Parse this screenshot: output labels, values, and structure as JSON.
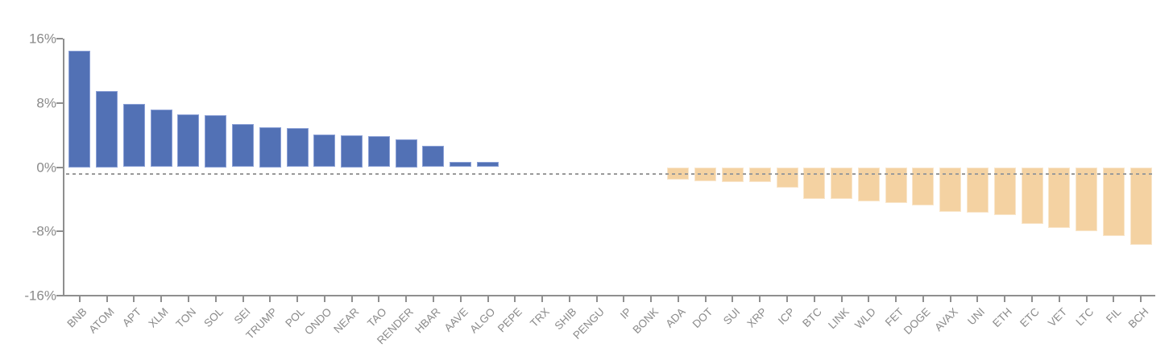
{
  "chart_data": {
    "type": "bar",
    "title": "",
    "xlabel": "",
    "ylabel": "",
    "ylim": [
      -16,
      16
    ],
    "grid": false,
    "legend": null,
    "y_ticks": [
      {
        "value": 16,
        "label": "16%"
      },
      {
        "value": 8,
        "label": "8%"
      },
      {
        "value": 0,
        "label": "0%"
      },
      {
        "value": -8,
        "label": "-8%"
      },
      {
        "value": -16,
        "label": "-16%"
      }
    ],
    "reference_line": {
      "value": -0.9,
      "style": "dashed"
    },
    "categories": [
      "BNB",
      "ATOM",
      "APT",
      "XLM",
      "TON",
      "SOL",
      "SEI",
      "TRUMP",
      "POL",
      "ONDO",
      "NEAR",
      "TAO",
      "RENDER",
      "HBAR",
      "AAVE",
      "ALGO",
      "PEPE",
      "TRX",
      "SHIB",
      "PENGU",
      "IP",
      "BONK",
      "ADA",
      "DOT",
      "SUI",
      "XRP",
      "ICP",
      "BTC",
      "LINK",
      "WLD",
      "FET",
      "DOGE",
      "AVAX",
      "UNI",
      "ETH",
      "ETC",
      "VET",
      "LTC",
      "FIL",
      "BCH"
    ],
    "values": [
      14.5,
      9.5,
      7.9,
      7.2,
      6.6,
      6.5,
      5.4,
      5.0,
      4.9,
      4.1,
      4.0,
      3.9,
      3.5,
      2.7,
      0.7,
      0.7,
      0.0,
      0.0,
      0.0,
      0.0,
      0.0,
      0.0,
      -1.6,
      -1.8,
      -1.9,
      -1.9,
      -2.6,
      -4.0,
      -4.0,
      -4.3,
      -4.5,
      -4.8,
      -5.6,
      -5.7,
      -6.0,
      -7.1,
      -7.6,
      -8.0,
      -8.6,
      -9.7
    ],
    "colors": {
      "positive_bar": "#5271b5",
      "positive_bar_border": "#8ba0d6",
      "negative_bar": "#f4d2a2",
      "negative_bar_border": "#f9e6cb",
      "axis": "#8f8f8f",
      "tick_label": "#8a8a8a",
      "reference_line": "#9a9a9a",
      "background": "#ffffff"
    }
  }
}
